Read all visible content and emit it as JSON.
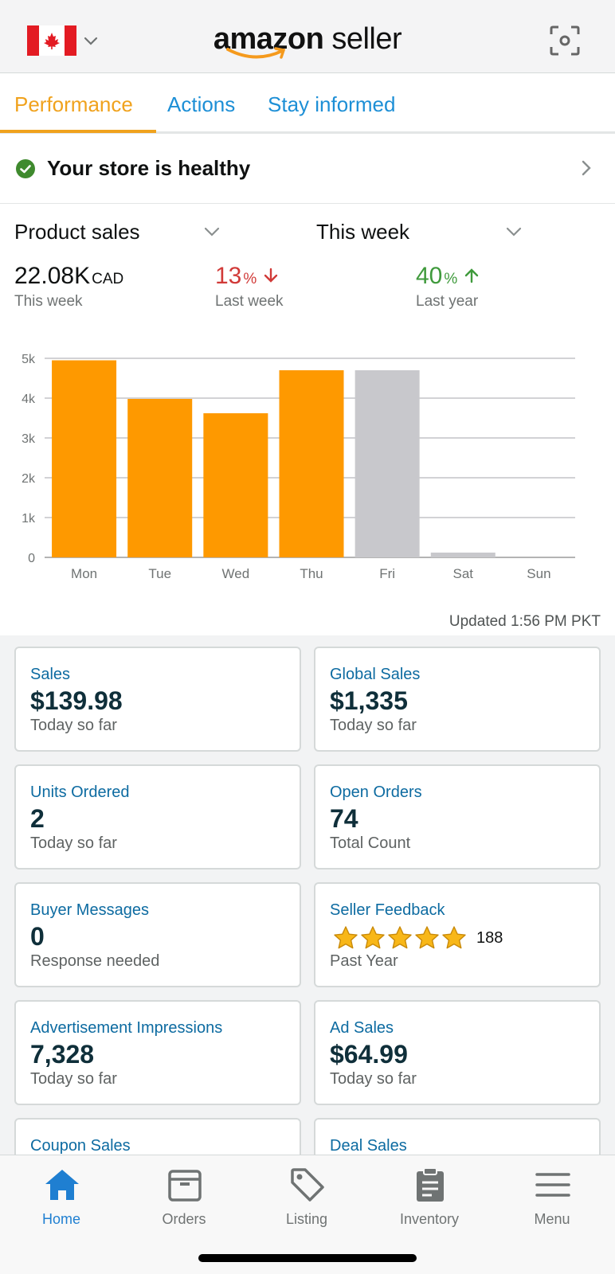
{
  "header": {
    "country_flag": "canada-flag",
    "logo_bold": "amazon",
    "logo_light": " seller",
    "icons": [
      "chevron-down-icon",
      "scan-icon"
    ]
  },
  "tabs": [
    {
      "label": "Performance",
      "active": true
    },
    {
      "label": "Actions",
      "active": false
    },
    {
      "label": "Stay informed",
      "active": false
    }
  ],
  "health": {
    "text": "Your store is healthy",
    "status_color": "#3f8a2e"
  },
  "filters": {
    "metric": "Product sales",
    "period": "This week"
  },
  "metrics": {
    "current": {
      "value": "22.08K",
      "unit": "CAD",
      "label": "This week"
    },
    "last_week": {
      "value": "13",
      "unit": "%",
      "direction": "down",
      "label": "Last week"
    },
    "last_year": {
      "value": "40",
      "unit": "%",
      "direction": "up",
      "label": "Last year"
    }
  },
  "chart_data": {
    "type": "bar",
    "categories": [
      "Mon",
      "Tue",
      "Wed",
      "Thu",
      "Fri",
      "Sat",
      "Sun"
    ],
    "values": [
      4950,
      3980,
      3620,
      4700,
      4700,
      120,
      0
    ],
    "bar_colors": [
      "#fe9900",
      "#fe9900",
      "#fe9900",
      "#fe9900",
      "#c8c8cc",
      "#c8c8cc",
      "#c8c8cc"
    ],
    "y_ticks": [
      "0",
      "1k",
      "2k",
      "3k",
      "4k",
      "5k"
    ],
    "ylim": [
      0,
      5000
    ],
    "grid": true
  },
  "updated": "Updated 1:56 PM PKT",
  "cards": [
    {
      "title": "Sales",
      "value": "$139.98",
      "sub": "Today so far"
    },
    {
      "title": "Global Sales",
      "value": "$1,335",
      "sub": "Today so far"
    },
    {
      "title": "Units Ordered",
      "value": "2",
      "sub": "Today so far"
    },
    {
      "title": "Open Orders",
      "value": "74",
      "sub": "Total Count"
    },
    {
      "title": "Buyer Messages",
      "value": "0",
      "sub": "Response needed"
    },
    {
      "title": "Seller Feedback",
      "rating": 5,
      "count": "188",
      "sub": "Past Year"
    },
    {
      "title": "Advertisement Impressions",
      "value": "7,328",
      "sub": "Today so far"
    },
    {
      "title": "Ad Sales",
      "value": "$64.99",
      "sub": "Today so far"
    },
    {
      "title": "Coupon Sales",
      "value": "",
      "sub": ""
    },
    {
      "title": "Deal Sales",
      "value": "",
      "sub": ""
    }
  ],
  "nav": [
    {
      "label": "Home",
      "icon": "home-icon",
      "active": true
    },
    {
      "label": "Orders",
      "icon": "orders-box-icon",
      "active": false
    },
    {
      "label": "Listing",
      "icon": "tag-icon",
      "active": false
    },
    {
      "label": "Inventory",
      "icon": "clipboard-icon",
      "active": false
    },
    {
      "label": "Menu",
      "icon": "menu-icon",
      "active": false
    }
  ],
  "colors": {
    "accent": "#f0a21d",
    "link": "#1d8fd6",
    "bar_active": "#fe9900",
    "bar_future": "#c8c8cc",
    "card_title": "#0d6ba1"
  }
}
